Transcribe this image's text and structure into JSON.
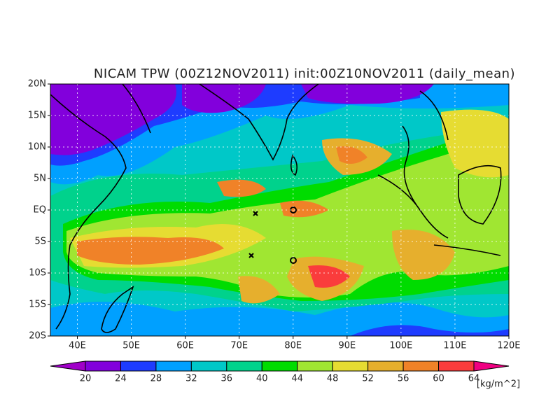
{
  "map": {
    "title": "NICAM TPW (00Z12NOV2011) init:00Z10NOV2011 (daily_mean)",
    "lat_labels": [
      "20N",
      "15N",
      "10N",
      "5N",
      "EQ",
      "5S",
      "10S",
      "15S",
      "20S"
    ],
    "lon_labels": [
      "40E",
      "50E",
      "60E",
      "70E",
      "80E",
      "90E",
      "100E",
      "110E",
      "120E"
    ]
  },
  "colorbar": {
    "levels": [
      20,
      24,
      28,
      32,
      36,
      40,
      44,
      48,
      52,
      56,
      60,
      64
    ],
    "colors": [
      "#a000c8",
      "#8200dc",
      "#1e3cff",
      "#00a0ff",
      "#00c8c8",
      "#00d28c",
      "#00dc00",
      "#a0e632",
      "#e6dc32",
      "#e6af2d",
      "#f08228",
      "#fa3c3c",
      "#f00082"
    ],
    "unit": "[kg/m^2]"
  }
}
